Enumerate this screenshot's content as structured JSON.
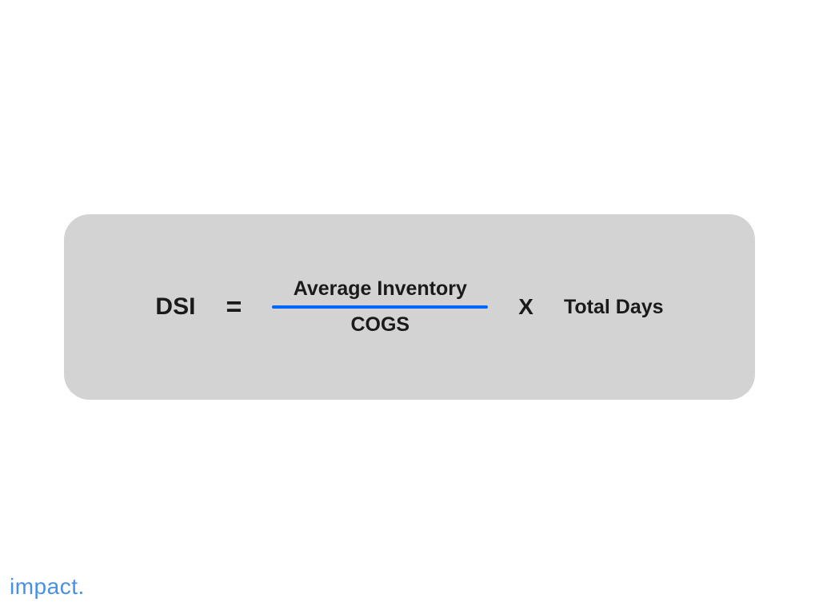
{
  "formula": {
    "result_label": "DSI",
    "equals": "=",
    "numerator": "Average Inventory",
    "denominator": "COGS",
    "multiply": "X",
    "multiplicand": "Total Days"
  },
  "logo": {
    "text": "impact."
  },
  "styles": {
    "container_bg": "#d4d3d3",
    "container_radius": 32,
    "text_color": "#1a1a1a",
    "line_color": "#0066ff",
    "logo_color": "#4a90e2",
    "result_fontsize": 30,
    "equals_fontsize": 34,
    "fraction_fontsize": 25,
    "multiply_fontsize": 28,
    "multiplicand_fontsize": 25,
    "logo_fontsize": 28,
    "line_width": 270,
    "line_height": 4
  }
}
